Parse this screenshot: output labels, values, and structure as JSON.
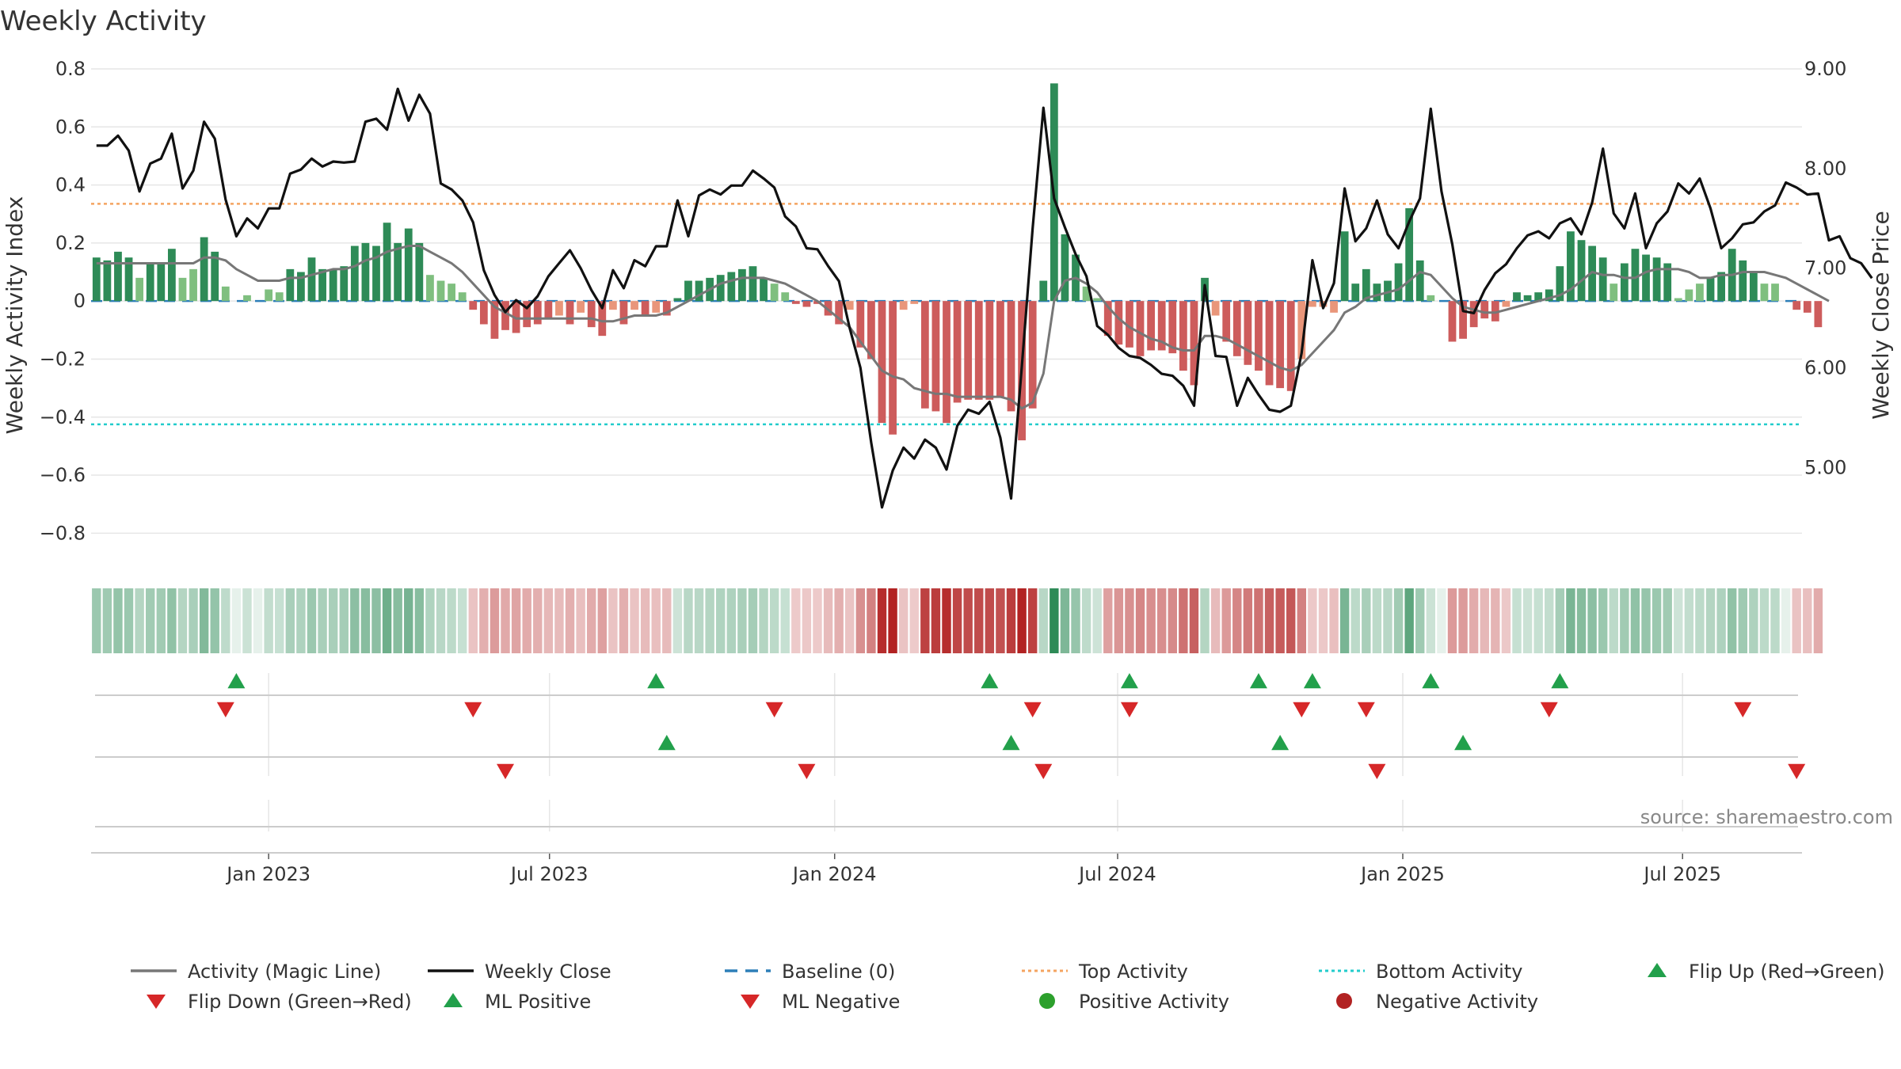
{
  "chart_data": {
    "type": "bar+line",
    "title": "Weekly Activity",
    "ylabel_left": "Weekly Activity Index",
    "ylabel_right": "Weekly Close Price",
    "source": "source: sharemaestro.com",
    "left_ylim": [
      -0.9,
      0.8
    ],
    "left_ticks": [
      0.8,
      0.6,
      0.4,
      0.2,
      0,
      -0.2,
      -0.4,
      -0.6,
      -0.8
    ],
    "left_tick_labels": [
      "0.8",
      "0.6",
      "0.4",
      "0.2",
      "0",
      "−0.2",
      "−0.4",
      "−0.6",
      "−0.8"
    ],
    "right_ylim": [
      4.05,
      9.0
    ],
    "right_ticks": [
      9.0,
      8.0,
      7.0,
      6.0,
      5.0
    ],
    "right_tick_labels": [
      "9.00",
      "8.00",
      "7.00",
      "6.00",
      "5.00"
    ],
    "top_activity": 0.335,
    "bottom_activity": -0.425,
    "x_tick_labels": [
      "Jan 2023",
      "Jul 2023",
      "Jan 2024",
      "Jul 2024",
      "Jan 2025",
      "Jul 2025"
    ],
    "x_tick_weeks": [
      16.5,
      42.6,
      69.1,
      95.4,
      121.9,
      147.9
    ],
    "n_weeks": 159,
    "activity": [
      0.15,
      0.14,
      0.17,
      0.15,
      0.08,
      0.13,
      0.13,
      0.18,
      0.08,
      0.11,
      0.22,
      0.17,
      0.05,
      0,
      0.02,
      0,
      0.04,
      0.03,
      0.11,
      0.1,
      0.15,
      0.11,
      0.11,
      0.12,
      0.19,
      0.2,
      0.19,
      0.27,
      0.2,
      0.25,
      0.2,
      0.09,
      0.07,
      0.06,
      0.03,
      -0.03,
      -0.08,
      -0.13,
      -0.1,
      -0.11,
      -0.09,
      -0.08,
      -0.06,
      -0.05,
      -0.08,
      -0.04,
      -0.09,
      -0.12,
      -0.03,
      -0.08,
      -0.03,
      -0.05,
      -0.04,
      -0.05,
      0.01,
      0.07,
      0.07,
      0.08,
      0.09,
      0.1,
      0.11,
      0.12,
      0.08,
      0.06,
      0.03,
      -0.01,
      -0.02,
      -0.01,
      -0.05,
      -0.08,
      -0.03,
      -0.16,
      -0.2,
      -0.42,
      -0.46,
      -0.03,
      -0.01,
      -0.37,
      -0.38,
      -0.42,
      -0.35,
      -0.34,
      -0.34,
      -0.34,
      -0.33,
      -0.38,
      -0.48,
      -0.37,
      0.07,
      0.75,
      0.23,
      0.16,
      0.05,
      0.01,
      -0.12,
      -0.15,
      -0.16,
      -0.19,
      -0.17,
      -0.17,
      -0.18,
      -0.24,
      -0.29,
      0.08,
      -0.05,
      -0.14,
      -0.19,
      -0.22,
      -0.24,
      -0.29,
      -0.3,
      -0.31,
      -0.2,
      -0.02,
      -0.02,
      -0.04,
      0.24,
      0.06,
      0.11,
      0.06,
      0.07,
      0.13,
      0.32,
      0.14,
      0.02,
      0,
      -0.14,
      -0.13,
      -0.09,
      -0.06,
      -0.07,
      -0.02,
      0.03,
      0.02,
      0.03,
      0.04,
      0.12,
      0.24,
      0.21,
      0.19,
      0.15,
      0.06,
      0.13,
      0.18,
      0.16,
      0.15,
      0.13,
      0.01,
      0.04,
      0.06,
      0.08,
      0.1,
      0.18,
      0.14,
      0.1,
      0.06,
      0.06,
      0,
      -0.03,
      -0.04,
      -0.09
    ],
    "magic_line": [
      0.13,
      0.13,
      0.13,
      0.13,
      0.13,
      0.13,
      0.13,
      0.13,
      0.13,
      0.13,
      0.15,
      0.15,
      0.14,
      0.11,
      0.09,
      0.07,
      0.07,
      0.07,
      0.08,
      0.08,
      0.09,
      0.1,
      0.11,
      0.11,
      0.12,
      0.14,
      0.15,
      0.17,
      0.18,
      0.19,
      0.19,
      0.17,
      0.15,
      0.13,
      0.1,
      0.06,
      0.02,
      -0.02,
      -0.04,
      -0.06,
      -0.06,
      -0.06,
      -0.06,
      -0.06,
      -0.06,
      -0.06,
      -0.06,
      -0.07,
      -0.07,
      -0.06,
      -0.05,
      -0.05,
      -0.05,
      -0.04,
      -0.02,
      0,
      0.02,
      0.04,
      0.06,
      0.07,
      0.08,
      0.08,
      0.08,
      0.07,
      0.06,
      0.04,
      0.02,
      0,
      -0.03,
      -0.06,
      -0.09,
      -0.14,
      -0.19,
      -0.24,
      -0.26,
      -0.27,
      -0.3,
      -0.31,
      -0.32,
      -0.32,
      -0.33,
      -0.33,
      -0.33,
      -0.33,
      -0.33,
      -0.34,
      -0.37,
      -0.35,
      -0.25,
      0,
      0.07,
      0.08,
      0.06,
      0.03,
      -0.02,
      -0.06,
      -0.09,
      -0.11,
      -0.13,
      -0.14,
      -0.16,
      -0.17,
      -0.17,
      -0.12,
      -0.12,
      -0.13,
      -0.15,
      -0.17,
      -0.19,
      -0.21,
      -0.23,
      -0.24,
      -0.22,
      -0.18,
      -0.14,
      -0.1,
      -0.04,
      -0.02,
      0.01,
      0.02,
      0.03,
      0.04,
      0.07,
      0.1,
      0.09,
      0.05,
      0.01,
      -0.02,
      -0.03,
      -0.04,
      -0.04,
      -0.03,
      -0.02,
      -0.01,
      0,
      0.01,
      0.02,
      0.04,
      0.07,
      0.1,
      0.09,
      0.09,
      0.08,
      0.08,
      0.1,
      0.11,
      0.11,
      0.11,
      0.1,
      0.08,
      0.08,
      0.09,
      0.09,
      0.1,
      0.1,
      0.1,
      0.09,
      0.08,
      0.06,
      0.04,
      0.02,
      0
    ],
    "weekly_close": [
      8.23,
      8.23,
      8.33,
      8.18,
      7.77,
      8.05,
      8.1,
      8.35,
      7.8,
      7.98,
      8.47,
      8.3,
      7.69,
      7.32,
      7.5,
      7.4,
      7.6,
      7.6,
      7.95,
      7.99,
      8.1,
      8.02,
      8.07,
      8.06,
      8.07,
      8.47,
      8.5,
      8.39,
      8.8,
      8.48,
      8.74,
      8.55,
      7.85,
      7.79,
      7.68,
      7.46,
      6.98,
      6.73,
      6.56,
      6.68,
      6.6,
      6.72,
      6.92,
      7.05,
      7.18,
      7.0,
      6.78,
      6.6,
      6.98,
      6.8,
      7.08,
      7.02,
      7.22,
      7.22,
      7.68,
      7.32,
      7.73,
      7.79,
      7.74,
      7.83,
      7.83,
      7.98,
      7.9,
      7.81,
      7.52,
      7.42,
      7.2,
      7.19,
      7.02,
      6.87,
      6.4,
      6.0,
      5.25,
      4.6,
      4.97,
      5.2,
      5.09,
      5.28,
      5.2,
      4.98,
      5.42,
      5.58,
      5.54,
      5.66,
      5.3,
      4.69,
      6.02,
      7.4,
      8.61,
      7.7,
      7.41,
      7.14,
      6.92,
      6.42,
      6.33,
      6.2,
      6.12,
      6.1,
      6.03,
      5.94,
      5.92,
      5.82,
      5.62,
      6.83,
      6.12,
      6.11,
      5.62,
      5.9,
      5.73,
      5.58,
      5.56,
      5.62,
      6.15,
      7.08,
      6.6,
      6.85,
      7.8,
      7.27,
      7.4,
      7.68,
      7.34,
      7.2,
      7.47,
      7.7,
      8.6,
      7.77,
      7.24,
      6.57,
      6.55,
      6.78,
      6.95,
      7.04,
      7.2,
      7.33,
      7.37,
      7.3,
      7.45,
      7.5,
      7.34,
      7.66,
      8.2,
      7.55,
      7.4,
      7.75,
      7.2,
      7.45,
      7.57,
      7.85,
      7.75,
      7.9,
      7.6,
      7.2,
      7.3,
      7.44,
      7.46,
      7.57,
      7.63,
      7.86,
      7.81,
      7.74,
      7.75,
      7.28,
      7.32,
      7.1,
      7.05,
      6.9
    ],
    "signal_rows": [
      {
        "up_weeks": [
          13.5,
          52.5,
          83.5,
          96.5,
          108.5,
          113.5,
          124.5,
          136.5
        ],
        "down_weeks": [
          12.5,
          35.5,
          63.5,
          87.5,
          96.5,
          112.5,
          118.5,
          135.5,
          153.5
        ]
      },
      {
        "up_weeks": [
          53.5,
          85.5,
          110.5,
          127.5
        ],
        "down_weeks": [
          38.5,
          66.5,
          88.5,
          119.5,
          158.5
        ]
      }
    ],
    "legend": [
      {
        "label": "Activity (Magic Line)",
        "marker": "line",
        "color": "#777777"
      },
      {
        "label": "Weekly Close",
        "marker": "line",
        "color": "#111111"
      },
      {
        "label": "Baseline (0)",
        "marker": "dash",
        "color": "#2d7fb8"
      },
      {
        "label": "Top Activity",
        "marker": "dot-line",
        "color": "#f4a460"
      },
      {
        "label": "Bottom Activity",
        "marker": "dot-line",
        "color": "#22cccc"
      },
      {
        "label": "Flip Up (Red→Green)",
        "marker": "tri-up",
        "color": "#22a04b"
      },
      {
        "label": "Flip Down (Green→Red)",
        "marker": "tri-down",
        "color": "#d62728"
      },
      {
        "label": "ML Positive",
        "marker": "tri-up",
        "color": "#22a04b"
      },
      {
        "label": "ML Negative",
        "marker": "tri-down",
        "color": "#d62728"
      },
      {
        "label": "Positive Activity",
        "marker": "circle",
        "color": "#2ca02c"
      },
      {
        "label": "Negative Activity",
        "marker": "circle",
        "color": "#b22222"
      }
    ],
    "colors": {
      "pos_strong": "#2e8b57",
      "pos_weak": "#7fbf7f",
      "neg_strong": "#cd5c5c",
      "neg_weak": "#e9967a",
      "magic_line": "#777777",
      "close_line": "#111111",
      "grid": "#e6e6e6"
    }
  }
}
